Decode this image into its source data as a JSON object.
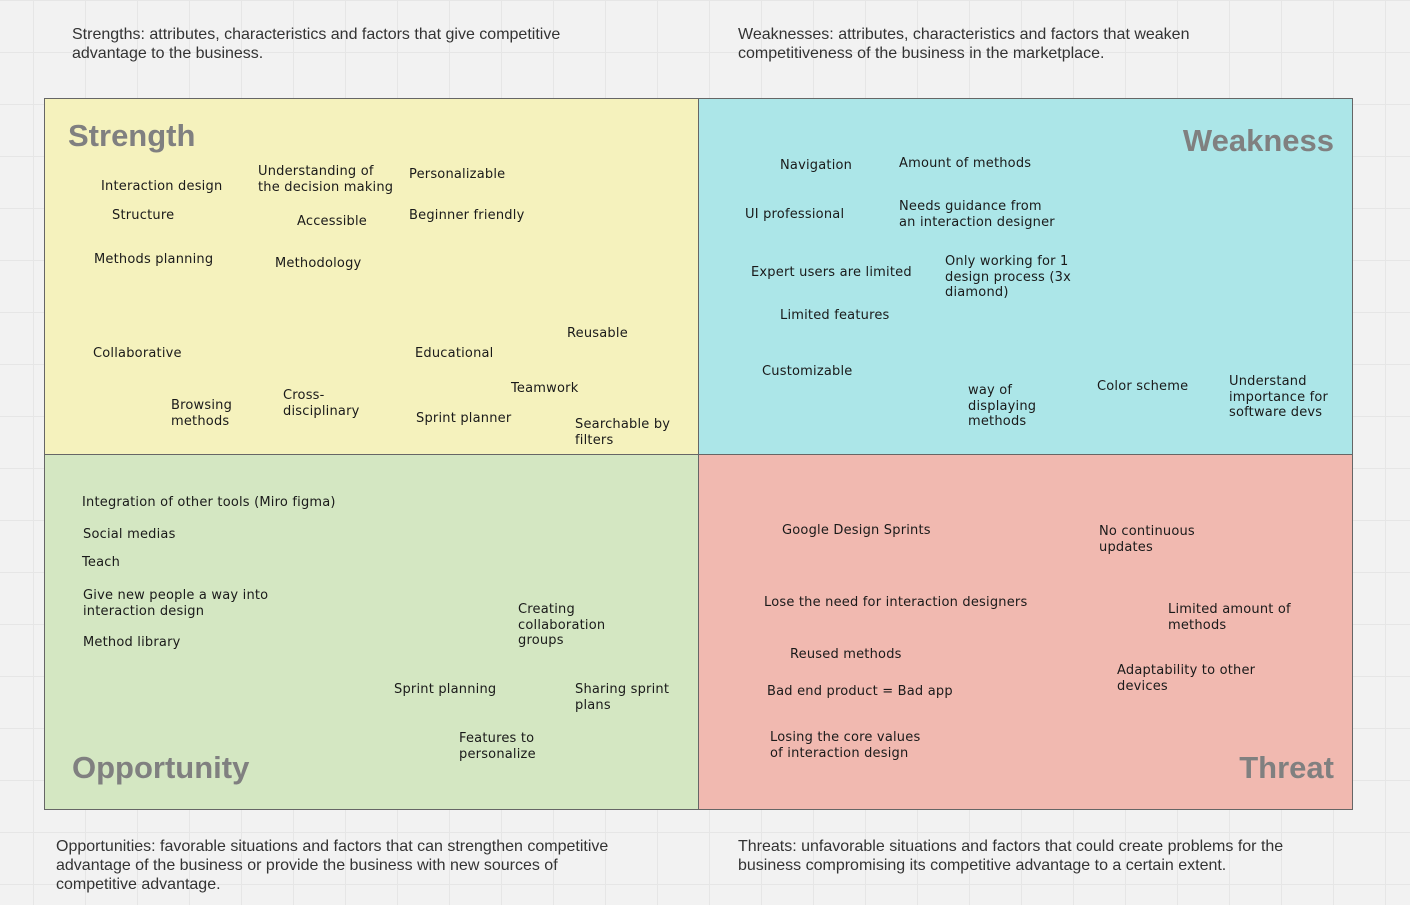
{
  "descriptions": {
    "strengths": "Strengths: attributes, characteristics and factors that give competitive\nadvantage to the business.",
    "weaknesses": "Weaknesses: attributes, characteristics and factors that weaken\ncompetitiveness of the business in the marketplace.",
    "opportunities": "Opportunities: favorable situations and factors that can strengthen competitive\nadvantage of the business or provide the business with new sources of\ncompetitive advantage.",
    "threats": "Threats: unfavorable situations and factors that could create problems for the\nbusiness compromising its competitive advantage to a certain extent."
  },
  "quadrants": {
    "strength": {
      "title": "Strength",
      "color": "#f5f2bd",
      "notes": [
        "Interaction design",
        "Understanding of\nthe decision making",
        "Personalizable",
        "Structure",
        "Accessible",
        "Beginner friendly",
        "Methods planning",
        "Methodology",
        "Reusable",
        "Collaborative",
        "Educational",
        "Teamwork",
        "Browsing\nmethods",
        "Cross-\ndisciplinary",
        "Sprint planner",
        "Searchable by\nfilters"
      ]
    },
    "weakness": {
      "title": "Weakness",
      "color": "#ace6e8",
      "notes": [
        "Navigation",
        "Amount of methods",
        "UI professional",
        "Needs guidance from\nan interaction designer",
        "Expert users are limited",
        "Only working for 1\ndesign process (3x\ndiamond)",
        "Limited features",
        "Customizable",
        "way of\ndisplaying\nmethods",
        "Color scheme",
        "Understand\nimportance for\nsoftware devs"
      ]
    },
    "opportunity": {
      "title": "Opportunity",
      "color": "#d4e7c2",
      "notes": [
        "Integration of other tools (Miro figma)",
        "Social medias",
        "Teach",
        "Give new people a way into\ninteraction design",
        "Method library",
        "Creating\ncollaboration\ngroups",
        "Sprint planning",
        "Sharing sprint\nplans",
        "Features to\npersonalize"
      ]
    },
    "threat": {
      "title": "Threat",
      "color": "#f1b9b0",
      "notes": [
        "Google Design Sprints",
        "No continuous\nupdates",
        "Lose the need for interaction designers",
        "Limited amount of\nmethods",
        "Reused methods",
        "Adaptability to other\ndevices",
        "Bad end product = Bad app",
        "Losing the core values\nof interaction design"
      ]
    }
  }
}
